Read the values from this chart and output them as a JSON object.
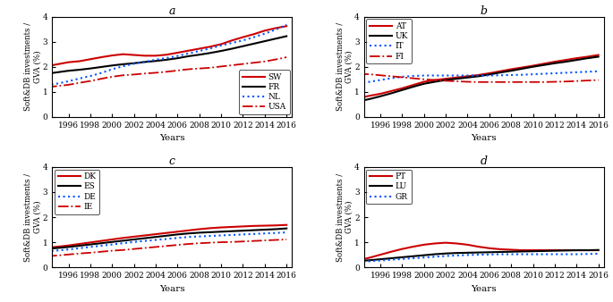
{
  "years": [
    1994,
    1995,
    1996,
    1997,
    1998,
    1999,
    2000,
    2001,
    2002,
    2003,
    2004,
    2005,
    2006,
    2007,
    2008,
    2009,
    2010,
    2011,
    2012,
    2013,
    2014,
    2015,
    2016
  ],
  "panel_a": {
    "title": "a",
    "SW": [
      2.02,
      2.1,
      2.18,
      2.22,
      2.3,
      2.38,
      2.45,
      2.5,
      2.47,
      2.44,
      2.44,
      2.48,
      2.56,
      2.64,
      2.72,
      2.8,
      2.9,
      3.05,
      3.18,
      3.3,
      3.44,
      3.54,
      3.62
    ],
    "FR": [
      1.72,
      1.78,
      1.84,
      1.88,
      1.93,
      1.99,
      2.05,
      2.1,
      2.14,
      2.19,
      2.23,
      2.28,
      2.34,
      2.42,
      2.48,
      2.55,
      2.63,
      2.72,
      2.82,
      2.92,
      3.02,
      3.12,
      3.22
    ],
    "NL": [
      1.25,
      1.33,
      1.42,
      1.53,
      1.63,
      1.75,
      1.9,
      2.02,
      2.12,
      2.2,
      2.28,
      2.35,
      2.43,
      2.53,
      2.63,
      2.73,
      2.85,
      2.95,
      3.05,
      3.18,
      3.32,
      3.48,
      3.68
    ],
    "USA": [
      1.18,
      1.23,
      1.28,
      1.36,
      1.43,
      1.52,
      1.6,
      1.66,
      1.69,
      1.73,
      1.76,
      1.8,
      1.85,
      1.9,
      1.93,
      1.96,
      2.01,
      2.06,
      2.11,
      2.16,
      2.21,
      2.29,
      2.38
    ],
    "legend_loc": "lower right",
    "ylim": [
      0,
      4
    ]
  },
  "panel_b": {
    "title": "b",
    "AT": [
      0.75,
      0.84,
      0.92,
      1.03,
      1.14,
      1.27,
      1.4,
      1.47,
      1.52,
      1.57,
      1.62,
      1.67,
      1.74,
      1.82,
      1.9,
      1.97,
      2.04,
      2.12,
      2.2,
      2.27,
      2.34,
      2.4,
      2.47
    ],
    "UK": [
      0.62,
      0.71,
      0.82,
      0.94,
      1.07,
      1.2,
      1.32,
      1.4,
      1.47,
      1.52,
      1.57,
      1.62,
      1.69,
      1.77,
      1.84,
      1.92,
      2.0,
      2.07,
      2.14,
      2.2,
      2.27,
      2.34,
      2.4
    ],
    "IT": [
      1.32,
      1.4,
      1.47,
      1.54,
      1.6,
      1.63,
      1.65,
      1.65,
      1.65,
      1.65,
      1.65,
      1.65,
      1.65,
      1.66,
      1.67,
      1.68,
      1.7,
      1.72,
      1.74,
      1.76,
      1.78,
      1.8,
      1.82
    ],
    "FI": [
      1.72,
      1.7,
      1.66,
      1.62,
      1.58,
      1.54,
      1.5,
      1.47,
      1.44,
      1.42,
      1.4,
      1.39,
      1.39,
      1.39,
      1.39,
      1.39,
      1.39,
      1.39,
      1.4,
      1.41,
      1.43,
      1.45,
      1.47
    ],
    "legend_loc": "upper left",
    "ylim": [
      0,
      4
    ]
  },
  "panel_c": {
    "title": "c",
    "DK": [
      0.78,
      0.82,
      0.87,
      0.93,
      0.99,
      1.05,
      1.11,
      1.17,
      1.22,
      1.27,
      1.32,
      1.37,
      1.42,
      1.47,
      1.52,
      1.56,
      1.59,
      1.61,
      1.63,
      1.65,
      1.66,
      1.67,
      1.69
    ],
    "ES": [
      0.73,
      0.77,
      0.81,
      0.86,
      0.91,
      0.96,
      1.01,
      1.06,
      1.11,
      1.16,
      1.21,
      1.26,
      1.31,
      1.35,
      1.38,
      1.4,
      1.42,
      1.44,
      1.46,
      1.48,
      1.5,
      1.52,
      1.55
    ],
    "DE": [
      0.63,
      0.67,
      0.71,
      0.76,
      0.81,
      0.86,
      0.91,
      0.96,
      1.01,
      1.05,
      1.09,
      1.13,
      1.17,
      1.21,
      1.23,
      1.25,
      1.27,
      1.29,
      1.31,
      1.33,
      1.35,
      1.37,
      1.39
    ],
    "IE": [
      0.44,
      0.47,
      0.51,
      0.55,
      0.58,
      0.62,
      0.66,
      0.69,
      0.73,
      0.77,
      0.81,
      0.85,
      0.89,
      0.93,
      0.96,
      0.98,
      1.0,
      1.01,
      1.03,
      1.05,
      1.07,
      1.09,
      1.11
    ],
    "legend_loc": "upper left",
    "ylim": [
      0,
      4
    ]
  },
  "panel_d": {
    "title": "d",
    "PT": [
      0.28,
      0.38,
      0.5,
      0.62,
      0.73,
      0.82,
      0.9,
      0.95,
      0.98,
      0.95,
      0.9,
      0.82,
      0.76,
      0.72,
      0.7,
      0.68,
      0.68,
      0.68,
      0.68,
      0.68,
      0.68,
      0.68,
      0.68
    ],
    "LU": [
      0.25,
      0.28,
      0.32,
      0.36,
      0.4,
      0.44,
      0.48,
      0.52,
      0.55,
      0.57,
      0.58,
      0.59,
      0.6,
      0.61,
      0.62,
      0.63,
      0.64,
      0.65,
      0.66,
      0.67,
      0.68,
      0.68,
      0.69
    ],
    "GR": [
      0.22,
      0.24,
      0.27,
      0.3,
      0.33,
      0.36,
      0.39,
      0.42,
      0.45,
      0.47,
      0.49,
      0.5,
      0.51,
      0.52,
      0.52,
      0.52,
      0.52,
      0.52,
      0.52,
      0.52,
      0.52,
      0.53,
      0.54
    ],
    "legend_loc": "upper left",
    "ylim": [
      0,
      4
    ]
  },
  "ylabel": "Soft&DB investments /\nGVA (%)",
  "xlabel": "Years",
  "xlim": [
    1994.5,
    2016.5
  ],
  "xticks": [
    1996,
    1998,
    2000,
    2002,
    2004,
    2006,
    2008,
    2010,
    2012,
    2014,
    2016
  ],
  "yticks": [
    0,
    1,
    2,
    3,
    4
  ],
  "line_colors": {
    "red": "#cc0000",
    "black": "#000000",
    "blue": "#0055ff"
  }
}
